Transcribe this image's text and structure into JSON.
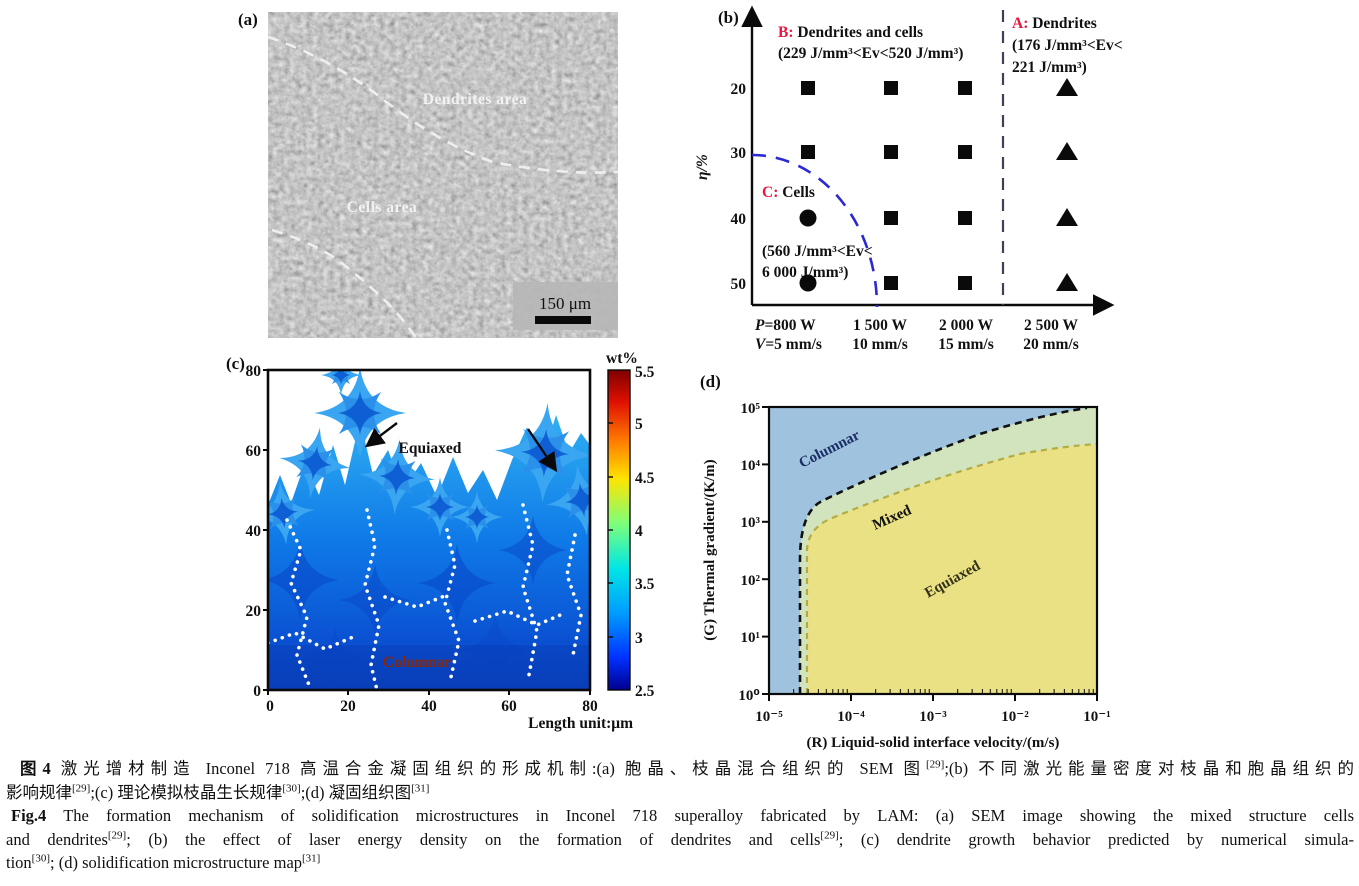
{
  "panels": {
    "a": {
      "label": "(a)",
      "type": "sem-image",
      "area_label_top": "Dendrites area",
      "area_label_middle": "Cells area",
      "scale_bar": "150 μm"
    },
    "b": {
      "label": "(b)"
    },
    "c": {
      "label": "(c)"
    },
    "d": {
      "label": "(d)"
    }
  },
  "chart_data": [
    {
      "panel": "b",
      "type": "scatter",
      "ylabel": "η/%",
      "yticks": [
        "20",
        "30",
        "40",
        "50"
      ],
      "xticks": [
        {
          "sym": "P",
          "row1": "=800 W",
          "sym2": "V",
          "row2": "=5 mm/s"
        },
        {
          "row1": "1 500 W",
          "row2": "10 mm/s"
        },
        {
          "row1": "2 000 W",
          "row2": "15 mm/s"
        },
        {
          "row1": "2 500 W",
          "row2": "20 mm/s"
        }
      ],
      "regions": [
        {
          "id": "A",
          "prefix": "A:",
          "name": " Dendrites",
          "range_line1": "(176 J/mm³<Ev<",
          "range_line2": "221 J/mm³)",
          "marker": "triangle"
        },
        {
          "id": "B",
          "prefix": "B:",
          "name": " Dendrites and cells",
          "range_line1": "(229 J/mm³<Ev<520 J/mm³)",
          "range_line2": "",
          "marker": "square"
        },
        {
          "id": "C",
          "prefix": "C:",
          "name": " Cells",
          "range_line1": "(560 J/mm³<Ev<",
          "range_line2": "6 000 J/mm³)",
          "marker": "circle"
        }
      ],
      "points": [
        {
          "eta": 20,
          "col": 0,
          "marker": "square"
        },
        {
          "eta": 20,
          "col": 1,
          "marker": "square"
        },
        {
          "eta": 20,
          "col": 2,
          "marker": "square"
        },
        {
          "eta": 20,
          "col": 3,
          "marker": "triangle"
        },
        {
          "eta": 30,
          "col": 0,
          "marker": "square"
        },
        {
          "eta": 30,
          "col": 1,
          "marker": "square"
        },
        {
          "eta": 30,
          "col": 2,
          "marker": "square"
        },
        {
          "eta": 30,
          "col": 3,
          "marker": "triangle"
        },
        {
          "eta": 40,
          "col": 0,
          "marker": "circle"
        },
        {
          "eta": 40,
          "col": 1,
          "marker": "square"
        },
        {
          "eta": 40,
          "col": 2,
          "marker": "square"
        },
        {
          "eta": 40,
          "col": 3,
          "marker": "triangle"
        },
        {
          "eta": 50,
          "col": 0,
          "marker": "circle"
        },
        {
          "eta": 50,
          "col": 1,
          "marker": "square"
        },
        {
          "eta": 50,
          "col": 2,
          "marker": "square"
        },
        {
          "eta": 50,
          "col": 3,
          "marker": "triangle"
        }
      ]
    },
    {
      "panel": "c",
      "type": "heatmap",
      "xlabel": "Length unit:μm",
      "xticks": [
        "0",
        "20",
        "40",
        "60",
        "80"
      ],
      "yticks": [
        "80",
        "60",
        "40",
        "20",
        "0"
      ],
      "colorbar": {
        "title": "wt%",
        "ticks": [
          "5.5",
          "5",
          "4.5",
          "4",
          "3.5",
          "3",
          "2.5"
        ],
        "min": 2.5,
        "max": 5.5
      },
      "annotations": [
        {
          "text": "Equiaxed",
          "color": "#111111"
        },
        {
          "text": "Columnar",
          "color": "#8b2703"
        }
      ]
    },
    {
      "panel": "d",
      "type": "region-map",
      "xlabel": "(R) Liquid-solid interface velocity/(m/s)",
      "ylabel": "(G) Thermal gradient/(K/m)",
      "xticks": [
        "10⁻⁵",
        "10⁻⁴",
        "10⁻³",
        "10⁻²",
        "10⁻¹"
      ],
      "yticks": [
        "10⁰",
        "10¹",
        "10²",
        "10³",
        "10⁴",
        "10⁵"
      ],
      "regions": [
        {
          "name": "Columnar",
          "color": "#9fc3de"
        },
        {
          "name": "Mixed",
          "color": "#d2e4bd"
        },
        {
          "name": "Equiaxed",
          "color": "#eae184"
        }
      ]
    }
  ],
  "caption": {
    "zh": {
      "line1": [
        {
          "t": "图4",
          "b": 1
        },
        {
          "t": "  激光增材制造 Inconel 718 高温合金凝固组织的形成机制:(a) 胞晶、枝晶混合组织的 SEM 图"
        },
        {
          "t": "[29]",
          "sup": 1
        },
        {
          "t": ";(b) 不同激光能量密度对枝晶和胞晶组织的"
        }
      ],
      "line2": [
        {
          "t": "影响规律"
        },
        {
          "t": "[29]",
          "sup": 1
        },
        {
          "t": ";(c) 理论模拟枝晶生长规律"
        },
        {
          "t": "[30]",
          "sup": 1
        },
        {
          "t": ";(d) 凝固组织图"
        },
        {
          "t": "[31]",
          "sup": 1
        }
      ]
    },
    "en": {
      "line1": [
        {
          "t": "Fig.4",
          "b": 1
        },
        {
          "t": "  The formation mechanism of solidification microstructures in Inconel 718 superalloy fabricated by LAM: (a) SEM image showing the mixed structure cells"
        }
      ],
      "line2": [
        {
          "t": "and dendrites"
        },
        {
          "t": "[29]",
          "sup": 1
        },
        {
          "t": "; (b) the effect of laser energy density on the formation of dendrites and cells"
        },
        {
          "t": "[29]",
          "sup": 1
        },
        {
          "t": "; (c) dendrite growth behavior predicted by numerical simula-"
        }
      ],
      "line3": [
        {
          "t": "tion"
        },
        {
          "t": "[30]",
          "sup": 1
        },
        {
          "t": "; (d) solidification microstructure map"
        },
        {
          "t": "[31]",
          "sup": 1
        }
      ]
    }
  },
  "colors": {
    "accent_red": "#e8173f",
    "region_dashed_blue": "#2a2ad0",
    "divider_dashed": "#3f3f55",
    "columnar_label": "#8b2703",
    "sem_gray": "#8c8c8c"
  }
}
